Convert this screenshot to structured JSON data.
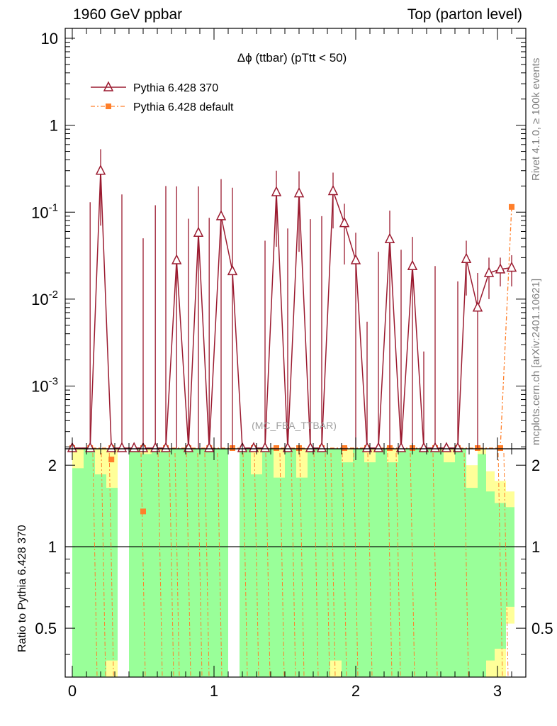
{
  "header": {
    "left": "1960 GeV ppbar",
    "right": "Top (parton level)"
  },
  "side_text": {
    "rivet": "Rivet 4.1.0, ≥ 100k events",
    "mcplots": "mcplots.cern.ch [arXiv:2401.10621]"
  },
  "colors": {
    "series1": "#9b1b30",
    "series2": "#ff7f2a",
    "band_green": "#99ff99",
    "band_yellow": "#ffff99"
  },
  "chart_data": [
    {
      "type": "line",
      "title": "Δϕ (ttbar) (pTtt < 50)",
      "analysis_label": "(MC_FBA_TTBAR)",
      "xlabel": "",
      "ylabel": "",
      "xlim": [
        -0.05,
        3.2
      ],
      "ylim": [
        0.00019,
        13
      ],
      "log_y": true,
      "grid": false,
      "legend_position": "top-left",
      "yticks": [
        {
          "value": 0.001,
          "label": "10^-3"
        },
        {
          "value": 0.01,
          "label": "10^-2"
        },
        {
          "value": 0.1,
          "label": "10^-1"
        },
        {
          "value": 1,
          "label": "1"
        },
        {
          "value": 10,
          "label": "10"
        }
      ],
      "series": [
        {
          "name": "Pythia 6.428 370",
          "marker": "open-triangle",
          "x": [
            0.0,
            0.126,
            0.2,
            0.276,
            0.35,
            0.436,
            0.5,
            0.586,
            0.66,
            0.736,
            0.82,
            0.89,
            0.966,
            1.05,
            1.13,
            1.2,
            1.28,
            1.36,
            1.44,
            1.52,
            1.6,
            1.68,
            1.76,
            1.84,
            1.92,
            2.0,
            2.08,
            2.16,
            2.24,
            2.32,
            2.4,
            2.48,
            2.56,
            2.64,
            2.72,
            2.78,
            2.86,
            2.94,
            3.02,
            3.1
          ],
          "y": [
            0.0,
            0.0,
            0.3,
            0.0,
            0.0,
            0.0,
            0.0,
            0.0,
            0.0,
            0.028,
            0.0,
            0.058,
            0.0,
            0.09,
            0.021,
            0.0,
            0.0,
            0.0,
            0.17,
            0.0,
            0.165,
            0.0,
            0.0,
            0.175,
            0.075,
            0.028,
            0.0,
            0.0,
            0.049,
            0.0,
            0.024,
            0.0,
            0.0,
            0.0,
            0.0,
            0.029,
            0.008,
            0.02,
            0.022,
            0.023
          ],
          "yerr": [
            0,
            0.13,
            0.23,
            0,
            0.16,
            0,
            0.05,
            0.12,
            0.2,
            0.17,
            0.084,
            0.14,
            0.086,
            0.15,
            0.17,
            0,
            0,
            0.047,
            0.13,
            0.065,
            0.13,
            0.083,
            0.09,
            0.11,
            0.05,
            0.03,
            0.0055,
            0.035,
            0.055,
            0.037,
            0.028,
            0.0025,
            0.024,
            0.0,
            0.016,
            0.018,
            0.012,
            0.01,
            0.008,
            0.009
          ]
        },
        {
          "name": "Pythia 6.428 default",
          "marker": "filled-square",
          "x": [
            0.0,
            0.126,
            0.276,
            0.5,
            0.66,
            0.82,
            0.966,
            1.13,
            1.28,
            1.44,
            1.6,
            1.76,
            1.92,
            2.08,
            2.24,
            2.4,
            2.56,
            2.72,
            2.86,
            3.02,
            3.1
          ],
          "y": [
            0.0,
            0.0,
            0.0,
            0.0,
            0.0,
            0.0,
            0.0,
            0.0,
            0.0,
            0.0,
            0.0,
            0.0,
            0.0,
            0.0,
            0.0,
            0.0,
            0.0,
            0.0,
            0.0,
            0.0,
            0.115
          ]
        }
      ]
    },
    {
      "type": "line",
      "ylabel": "Ratio to Pythia 6.428 370",
      "xlabel": "",
      "xlim": [
        -0.05,
        3.2
      ],
      "ylim": [
        0.33,
        2.3
      ],
      "log_y": true,
      "yticks": [
        {
          "value": 0.5,
          "label": "0.5"
        },
        {
          "value": 1,
          "label": "1"
        },
        {
          "value": 2,
          "label": "2"
        }
      ],
      "xticks": [
        {
          "value": 0,
          "label": "0"
        },
        {
          "value": 1,
          "label": "1"
        },
        {
          "value": 2,
          "label": "2"
        },
        {
          "value": 3,
          "label": "3"
        }
      ],
      "reference_line": 1,
      "bands": [
        {
          "x0": 0.0,
          "x1": 0.08,
          "green": [
            0.33,
            1.95
          ],
          "yellow": [
            0.33,
            2.3
          ]
        },
        {
          "x0": 0.08,
          "x1": 0.16,
          "green": [
            0.33,
            2.3
          ],
          "yellow": [
            0.33,
            2.3
          ]
        },
        {
          "x0": 0.16,
          "x1": 0.24,
          "green": [
            0.33,
            1.85
          ],
          "yellow": [
            0.33,
            2.3
          ]
        },
        {
          "x0": 0.24,
          "x1": 0.32,
          "green": [
            0.38,
            1.65
          ],
          "yellow": [
            0.33,
            2.3
          ]
        },
        {
          "x0": 0.4,
          "x1": 0.48,
          "green": [
            0.33,
            2.3
          ],
          "yellow": [
            0.33,
            2.3
          ]
        },
        {
          "x0": 0.48,
          "x1": 0.56,
          "green": [
            0.33,
            2.2
          ],
          "yellow": [
            0.33,
            2.3
          ]
        },
        {
          "x0": 0.56,
          "x1": 0.64,
          "green": [
            0.33,
            2.25
          ],
          "yellow": [
            0.33,
            2.3
          ]
        },
        {
          "x0": 0.64,
          "x1": 1.1,
          "green": [
            0.33,
            2.3
          ],
          "yellow": [
            0.33,
            2.3
          ]
        },
        {
          "x0": 1.18,
          "x1": 1.26,
          "green": [
            0.33,
            2.3
          ],
          "yellow": [
            0.33,
            2.3
          ]
        },
        {
          "x0": 1.26,
          "x1": 1.34,
          "green": [
            0.33,
            1.85
          ],
          "yellow": [
            0.33,
            2.3
          ]
        },
        {
          "x0": 1.34,
          "x1": 1.42,
          "green": [
            0.33,
            2.3
          ],
          "yellow": [
            0.33,
            2.3
          ]
        },
        {
          "x0": 1.42,
          "x1": 1.5,
          "green": [
            0.33,
            1.8
          ],
          "yellow": [
            0.33,
            2.3
          ]
        },
        {
          "x0": 1.5,
          "x1": 1.58,
          "green": [
            0.33,
            2.3
          ],
          "yellow": [
            0.33,
            2.3
          ]
        },
        {
          "x0": 1.58,
          "x1": 1.66,
          "green": [
            0.33,
            1.8
          ],
          "yellow": [
            0.33,
            2.3
          ]
        },
        {
          "x0": 1.66,
          "x1": 1.74,
          "green": [
            0.33,
            2.3
          ],
          "yellow": [
            0.33,
            2.3
          ]
        },
        {
          "x0": 1.74,
          "x1": 1.82,
          "green": [
            0.33,
            2.3
          ],
          "yellow": [
            0.33,
            2.3
          ]
        },
        {
          "x0": 1.82,
          "x1": 1.9,
          "green": [
            0.38,
            2.3
          ],
          "yellow": [
            0.33,
            2.3
          ]
        },
        {
          "x0": 1.9,
          "x1": 1.98,
          "green": [
            0.33,
            2.05
          ],
          "yellow": [
            0.33,
            2.3
          ]
        },
        {
          "x0": 1.98,
          "x1": 2.06,
          "green": [
            0.33,
            2.3
          ],
          "yellow": [
            0.33,
            2.3
          ]
        },
        {
          "x0": 2.06,
          "x1": 2.14,
          "green": [
            0.33,
            2.05
          ],
          "yellow": [
            0.33,
            2.3
          ]
        },
        {
          "x0": 2.14,
          "x1": 2.22,
          "green": [
            0.33,
            2.3
          ],
          "yellow": [
            0.33,
            2.3
          ]
        },
        {
          "x0": 2.22,
          "x1": 2.3,
          "green": [
            0.33,
            2.05
          ],
          "yellow": [
            0.33,
            2.3
          ]
        },
        {
          "x0": 2.3,
          "x1": 2.46,
          "green": [
            0.33,
            2.3
          ],
          "yellow": [
            0.33,
            2.3
          ]
        },
        {
          "x0": 2.46,
          "x1": 2.54,
          "green": [
            0.33,
            2.3
          ],
          "yellow": [
            0.33,
            2.3
          ]
        },
        {
          "x0": 2.54,
          "x1": 2.62,
          "green": [
            0.33,
            2.25
          ],
          "yellow": [
            0.33,
            2.3
          ]
        },
        {
          "x0": 2.62,
          "x1": 2.7,
          "green": [
            0.33,
            2.05
          ],
          "yellow": [
            0.33,
            2.3
          ]
        },
        {
          "x0": 2.7,
          "x1": 2.78,
          "green": [
            0.33,
            2.3
          ],
          "yellow": [
            0.33,
            2.3
          ]
        },
        {
          "x0": 2.78,
          "x1": 2.86,
          "green": [
            0.33,
            1.65
          ],
          "yellow": [
            0.33,
            2.0
          ]
        },
        {
          "x0": 2.86,
          "x1": 2.92,
          "green": [
            0.33,
            2.2
          ],
          "yellow": [
            0.33,
            2.3
          ]
        },
        {
          "x0": 2.92,
          "x1": 2.98,
          "green": [
            0.38,
            1.6
          ],
          "yellow": [
            0.33,
            1.9
          ]
        },
        {
          "x0": 2.98,
          "x1": 3.06,
          "green": [
            0.42,
            1.45
          ],
          "yellow": [
            0.33,
            1.75
          ]
        },
        {
          "x0": 3.06,
          "x1": 3.12,
          "green": [
            0.6,
            1.4
          ],
          "yellow": [
            0.52,
            1.6
          ]
        }
      ],
      "ratio_points": [
        {
          "x": 0.276,
          "y": 2.1
        },
        {
          "x": 0.5,
          "y": 1.35
        }
      ]
    }
  ]
}
